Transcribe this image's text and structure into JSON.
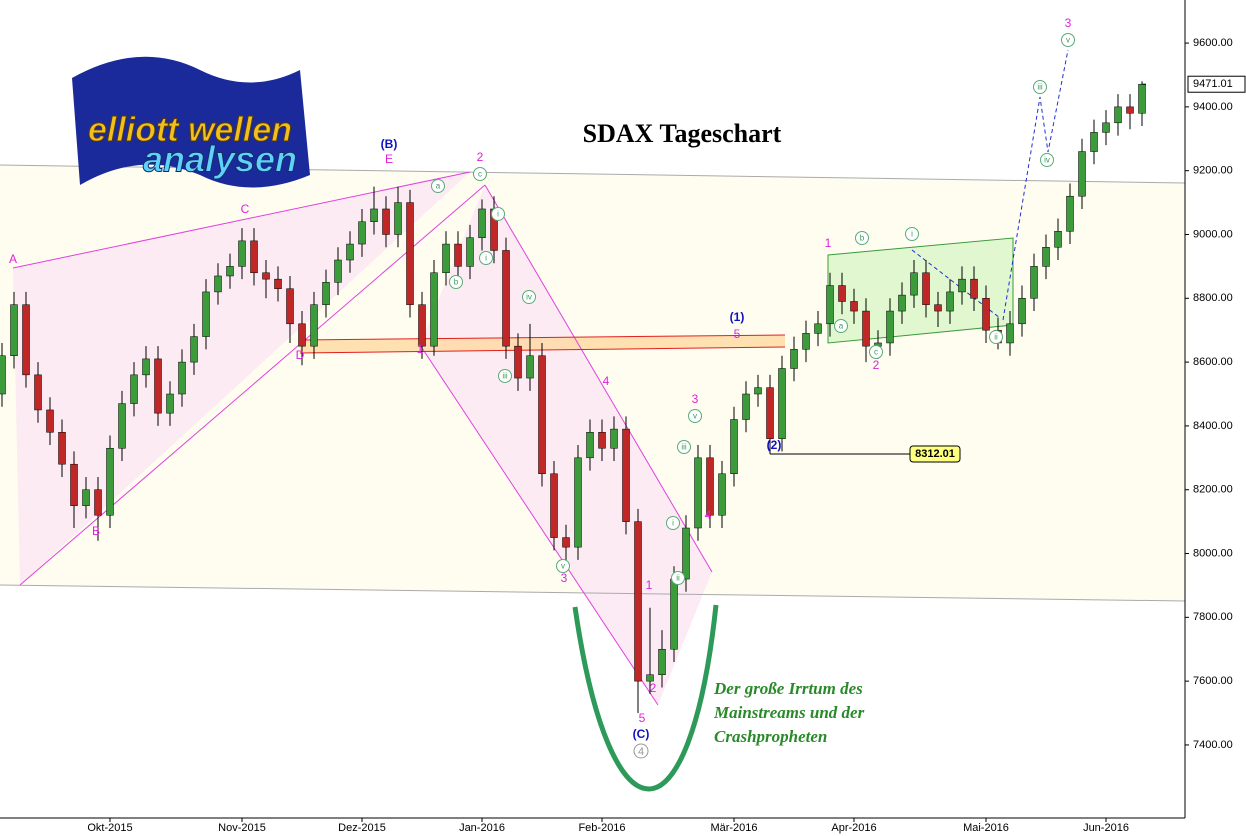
{
  "chart_data": {
    "type": "candlestick",
    "title": "SDAX Tageschart",
    "categories": [
      null,
      null,
      null,
      null,
      null,
      null,
      null,
      null,
      null,
      "Okt-2015",
      null,
      null,
      null,
      null,
      null,
      null,
      null,
      null,
      null,
      null,
      "Nov-2015",
      null,
      null,
      null,
      null,
      null,
      null,
      null,
      null,
      null,
      "Dez-2015",
      null,
      null,
      null,
      null,
      null,
      null,
      null,
      null,
      null,
      "Jan-2016",
      null,
      null,
      null,
      null,
      null,
      null,
      null,
      null,
      null,
      "Feb-2016",
      null,
      null,
      null,
      null,
      null,
      null,
      null,
      null,
      null,
      null,
      "Mär-2016",
      null,
      null,
      null,
      null,
      null,
      null,
      null,
      null,
      null,
      "Apr-2016",
      null,
      null,
      null,
      null,
      null,
      null,
      null,
      null,
      null,
      null,
      "Mai-2016",
      null,
      null,
      null,
      null,
      null,
      null,
      null,
      null,
      null,
      "Jun-2016",
      null,
      null,
      null
    ],
    "open": [
      8500,
      8620,
      8780,
      8560,
      8450,
      8380,
      8280,
      8150,
      8200,
      8120,
      8330,
      8470,
      8560,
      8610,
      8440,
      8500,
      8600,
      8680,
      8820,
      8870,
      8900,
      8980,
      8880,
      8860,
      8830,
      8720,
      8650,
      8780,
      8850,
      8920,
      8970,
      9040,
      9080,
      9000,
      9100,
      8780,
      8650,
      8880,
      8970,
      8900,
      8990,
      9080,
      8950,
      8650,
      8550,
      8620,
      8250,
      8050,
      8020,
      8300,
      8380,
      8330,
      8390,
      8100,
      7600,
      7620,
      7700,
      7920,
      8080,
      8300,
      8120,
      8250,
      8420,
      8500,
      8520,
      8360,
      8580,
      8640,
      8690,
      8720,
      8840,
      8790,
      8760,
      8650,
      8660,
      8760,
      8810,
      8880,
      8780,
      8760,
      8820,
      8860,
      8800,
      8700,
      8660,
      8720,
      8800,
      8900,
      8960,
      9010,
      9120,
      9260,
      9320,
      9350,
      9400,
      9380
    ],
    "high": [
      8660,
      8820,
      8820,
      8600,
      8490,
      8420,
      8320,
      8240,
      8240,
      8370,
      8510,
      8600,
      8650,
      8650,
      8540,
      8640,
      8720,
      8860,
      8910,
      8940,
      9020,
      9020,
      8920,
      8900,
      8870,
      8760,
      8820,
      8890,
      8960,
      9010,
      9080,
      9150,
      9120,
      9150,
      9140,
      8820,
      8920,
      9010,
      9010,
      9030,
      9110,
      9120,
      8990,
      8690,
      8720,
      8660,
      8290,
      8090,
      8340,
      8420,
      8420,
      8430,
      8430,
      8140,
      7830,
      7760,
      7960,
      8120,
      8340,
      8340,
      8290,
      8460,
      8540,
      8560,
      8560,
      8620,
      8680,
      8730,
      8760,
      8880,
      8880,
      8830,
      8800,
      8700,
      8800,
      8850,
      8920,
      8920,
      8820,
      8860,
      8900,
      8900,
      8840,
      8740,
      8760,
      8840,
      8940,
      9000,
      9050,
      9160,
      9300,
      9360,
      9390,
      9440,
      9440,
      9480
    ],
    "low": [
      8460,
      8580,
      8520,
      8410,
      8340,
      8240,
      8080,
      8110,
      8040,
      8080,
      8290,
      8430,
      8520,
      8400,
      8400,
      8460,
      8560,
      8640,
      8780,
      8830,
      8860,
      8840,
      8800,
      8790,
      8660,
      8590,
      8610,
      8740,
      8810,
      8880,
      8930,
      9000,
      8960,
      8960,
      8740,
      8610,
      8620,
      8840,
      8860,
      8860,
      8950,
      8910,
      8610,
      8510,
      8510,
      8210,
      8010,
      7950,
      7980,
      8260,
      8290,
      8290,
      8060,
      7500,
      7560,
      7580,
      7660,
      7880,
      8040,
      8080,
      8080,
      8210,
      8380,
      8460,
      8312.01,
      8320,
      8540,
      8600,
      8650,
      8680,
      8750,
      8720,
      8600,
      8610,
      8620,
      8720,
      8770,
      8740,
      8710,
      8720,
      8780,
      8760,
      8660,
      8640,
      8620,
      8680,
      8760,
      8860,
      8920,
      8970,
      9080,
      9220,
      9280,
      9310,
      9330,
      9340
    ],
    "close": [
      8620,
      8780,
      8560,
      8450,
      8380,
      8280,
      8150,
      8200,
      8120,
      8330,
      8470,
      8560,
      8610,
      8440,
      8500,
      8600,
      8680,
      8820,
      8870,
      8900,
      8980,
      8880,
      8860,
      8830,
      8720,
      8650,
      8780,
      8850,
      8920,
      8970,
      9040,
      9080,
      9000,
      9100,
      8780,
      8650,
      8880,
      8970,
      8900,
      8990,
      9080,
      8950,
      8650,
      8550,
      8620,
      8250,
      8050,
      8020,
      8300,
      8380,
      8330,
      8390,
      8100,
      7600,
      7620,
      7700,
      7920,
      8080,
      8300,
      8120,
      8250,
      8420,
      8500,
      8520,
      8360,
      8580,
      8640,
      8690,
      8720,
      8840,
      8790,
      8760,
      8650,
      8660,
      8760,
      8810,
      8880,
      8780,
      8760,
      8820,
      8860,
      8800,
      8700,
      8660,
      8720,
      8800,
      8900,
      8960,
      9010,
      9120,
      9260,
      9320,
      9350,
      9400,
      9380,
      9471.01
    ],
    "up_color": "#3c9c3c",
    "down_color": "#c02828",
    "ylim": [
      7171,
      9735
    ],
    "yticks": [
      {
        "value": 7400,
        "label": "7400.00"
      },
      {
        "value": 7600,
        "label": "7600.00"
      },
      {
        "value": 7800,
        "label": "7800.00"
      },
      {
        "value": 8000,
        "label": "8000.00"
      },
      {
        "value": 8200,
        "label": "8200.00"
      },
      {
        "value": 8400,
        "label": "8400.00"
      },
      {
        "value": 8600,
        "label": "8600.00"
      },
      {
        "value": 8800,
        "label": "8800.00"
      },
      {
        "value": 9000,
        "label": "9000.00"
      },
      {
        "value": 9200,
        "label": "9200.00"
      },
      {
        "value": 9400,
        "label": "9400.00"
      },
      {
        "value": 9600,
        "label": "9600.00"
      }
    ]
  },
  "annotations": {
    "magenta": [
      "A",
      "B",
      "C",
      "D",
      "E",
      "2",
      "1",
      "4",
      "3",
      "1",
      "2",
      "5",
      "3",
      "4",
      "5",
      "1",
      "2",
      "3"
    ],
    "blue": [
      "(B)",
      "(C)",
      "(1)",
      "(2)"
    ],
    "circled": [
      "a",
      "b",
      "c",
      "i",
      "i",
      "iv",
      "iii",
      "v",
      "i",
      "ii",
      "iii",
      "v",
      "a",
      "b",
      "c",
      "i",
      "ii",
      "iii",
      "iv",
      "v"
    ],
    "gray_circled": [
      "4"
    ]
  },
  "logo": {
    "line1": "elliott wellen",
    "line2": "analysen"
  },
  "comment": [
    "Der große Irrtum des",
    "Mainstreams und der",
    "Crashpropheten"
  ]
}
